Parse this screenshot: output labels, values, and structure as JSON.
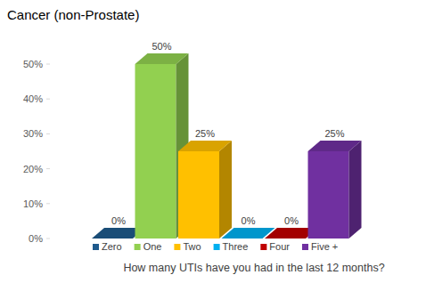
{
  "chart_data": {
    "type": "bar",
    "title": "Cancer (non-Prostate)",
    "x_label": "How many UTIs have you had in the last 12 months?",
    "categories": [
      "Zero",
      "One",
      "Two",
      "Three",
      "Four",
      "Five +"
    ],
    "values": [
      0,
      50,
      25,
      0,
      0,
      25
    ],
    "value_labels": [
      "0%",
      "50%",
      "25%",
      "0%",
      "0%",
      "25%"
    ],
    "colors": [
      "#1f5a8c",
      "#92d050",
      "#ffc000",
      "#00b0f0",
      "#c00000",
      "#7030a0"
    ],
    "ylim": [
      0,
      50
    ],
    "yticks": [
      {
        "value": 0,
        "label": "0%"
      },
      {
        "value": 10,
        "label": "10%"
      },
      {
        "value": 20,
        "label": "20%"
      },
      {
        "value": 30,
        "label": "30%"
      },
      {
        "value": 40,
        "label": "40%"
      },
      {
        "value": 50,
        "label": "50%"
      }
    ],
    "data_labels": true,
    "legend": "bottom",
    "tick_labels": "y",
    "grid": false
  }
}
